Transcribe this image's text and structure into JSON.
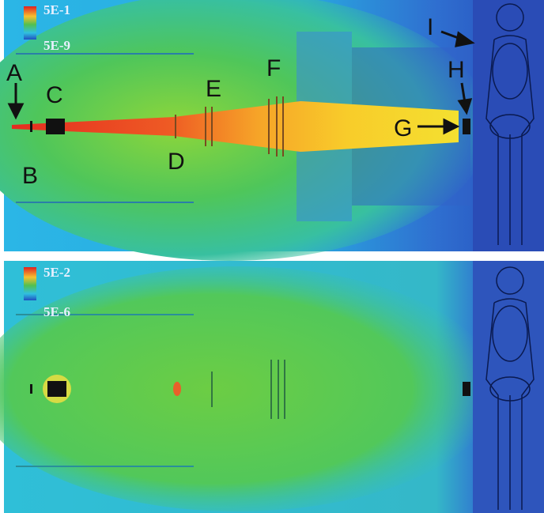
{
  "panels": [
    {
      "legend": {
        "max": "5E-1",
        "min": "5E-9"
      },
      "labels": [
        "A",
        "B",
        "C",
        "D",
        "E",
        "F",
        "G",
        "H",
        "I"
      ]
    },
    {
      "legend": {
        "max": "5E-2",
        "min": "5E-6"
      }
    }
  ]
}
